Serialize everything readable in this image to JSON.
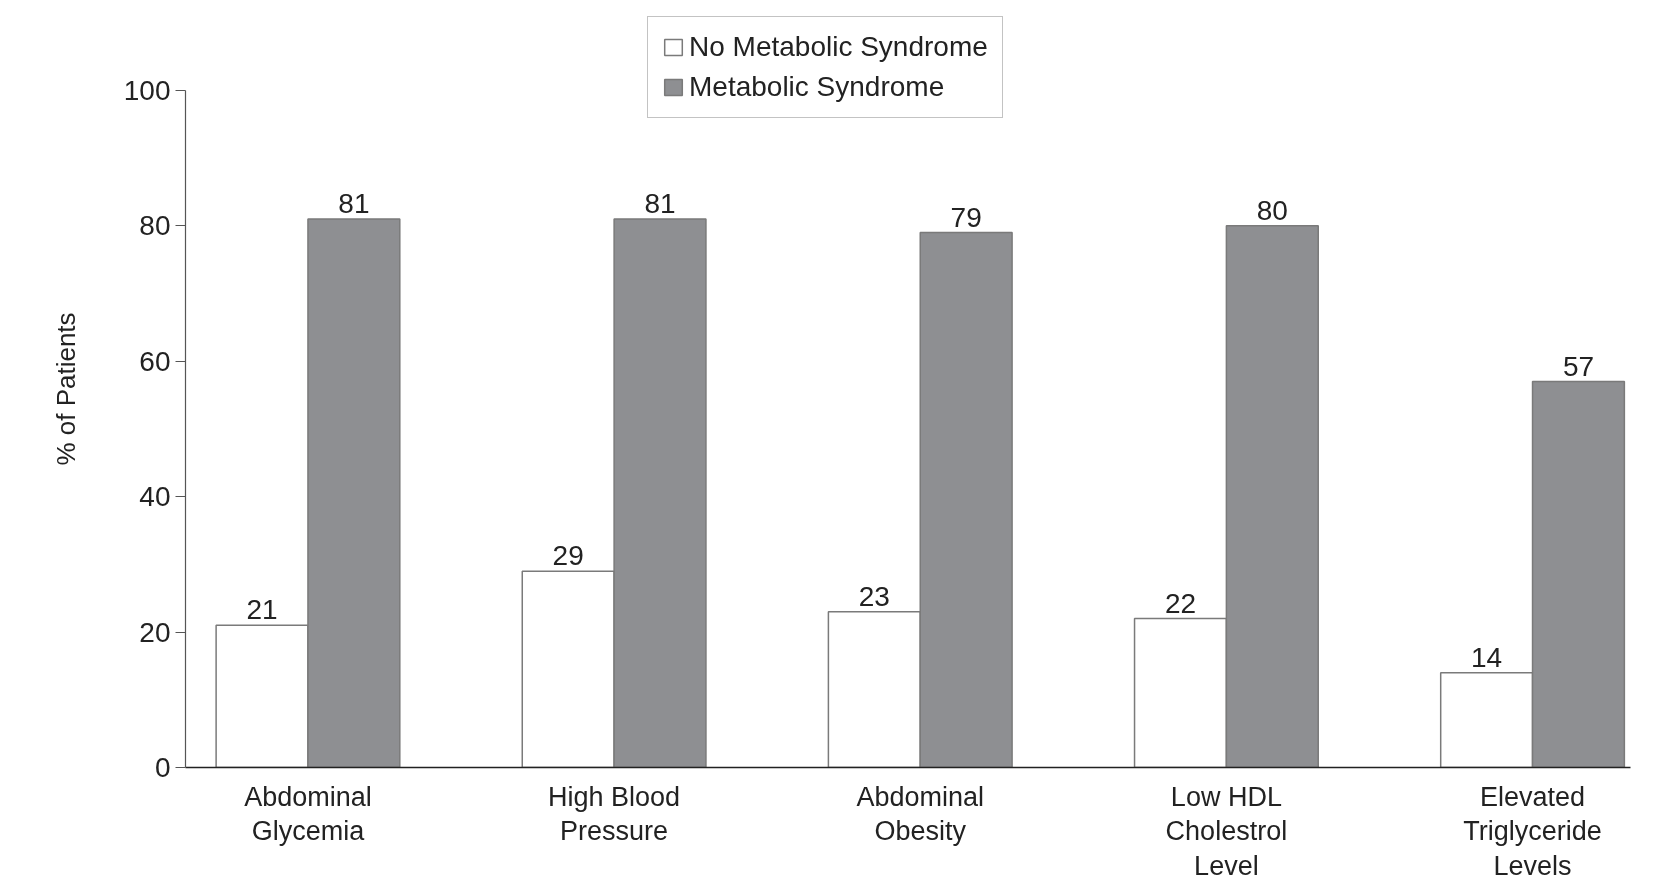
{
  "chart_data": {
    "type": "bar",
    "ylabel": "% of Patients",
    "categories": [
      "Abdominal\nGlycemia",
      "High Blood\nPressure",
      "Abdominal\nObesity",
      "Low HDL\nCholestrol\nLevel",
      "Elevated\nTriglyceride\nLevels"
    ],
    "series": [
      {
        "name": "No Metabolic Syndrome",
        "color": "#ffffff",
        "values": [
          21,
          29,
          23,
          22,
          14
        ]
      },
      {
        "name": "Metabolic Syndrome",
        "color": "#8e8f92",
        "values": [
          81,
          81,
          79,
          80,
          57
        ]
      }
    ],
    "ylim": [
      0,
      100
    ],
    "yticks": [
      0,
      20,
      40,
      60,
      80,
      100
    ],
    "data_labels": true,
    "legend": "top",
    "grid": false
  }
}
